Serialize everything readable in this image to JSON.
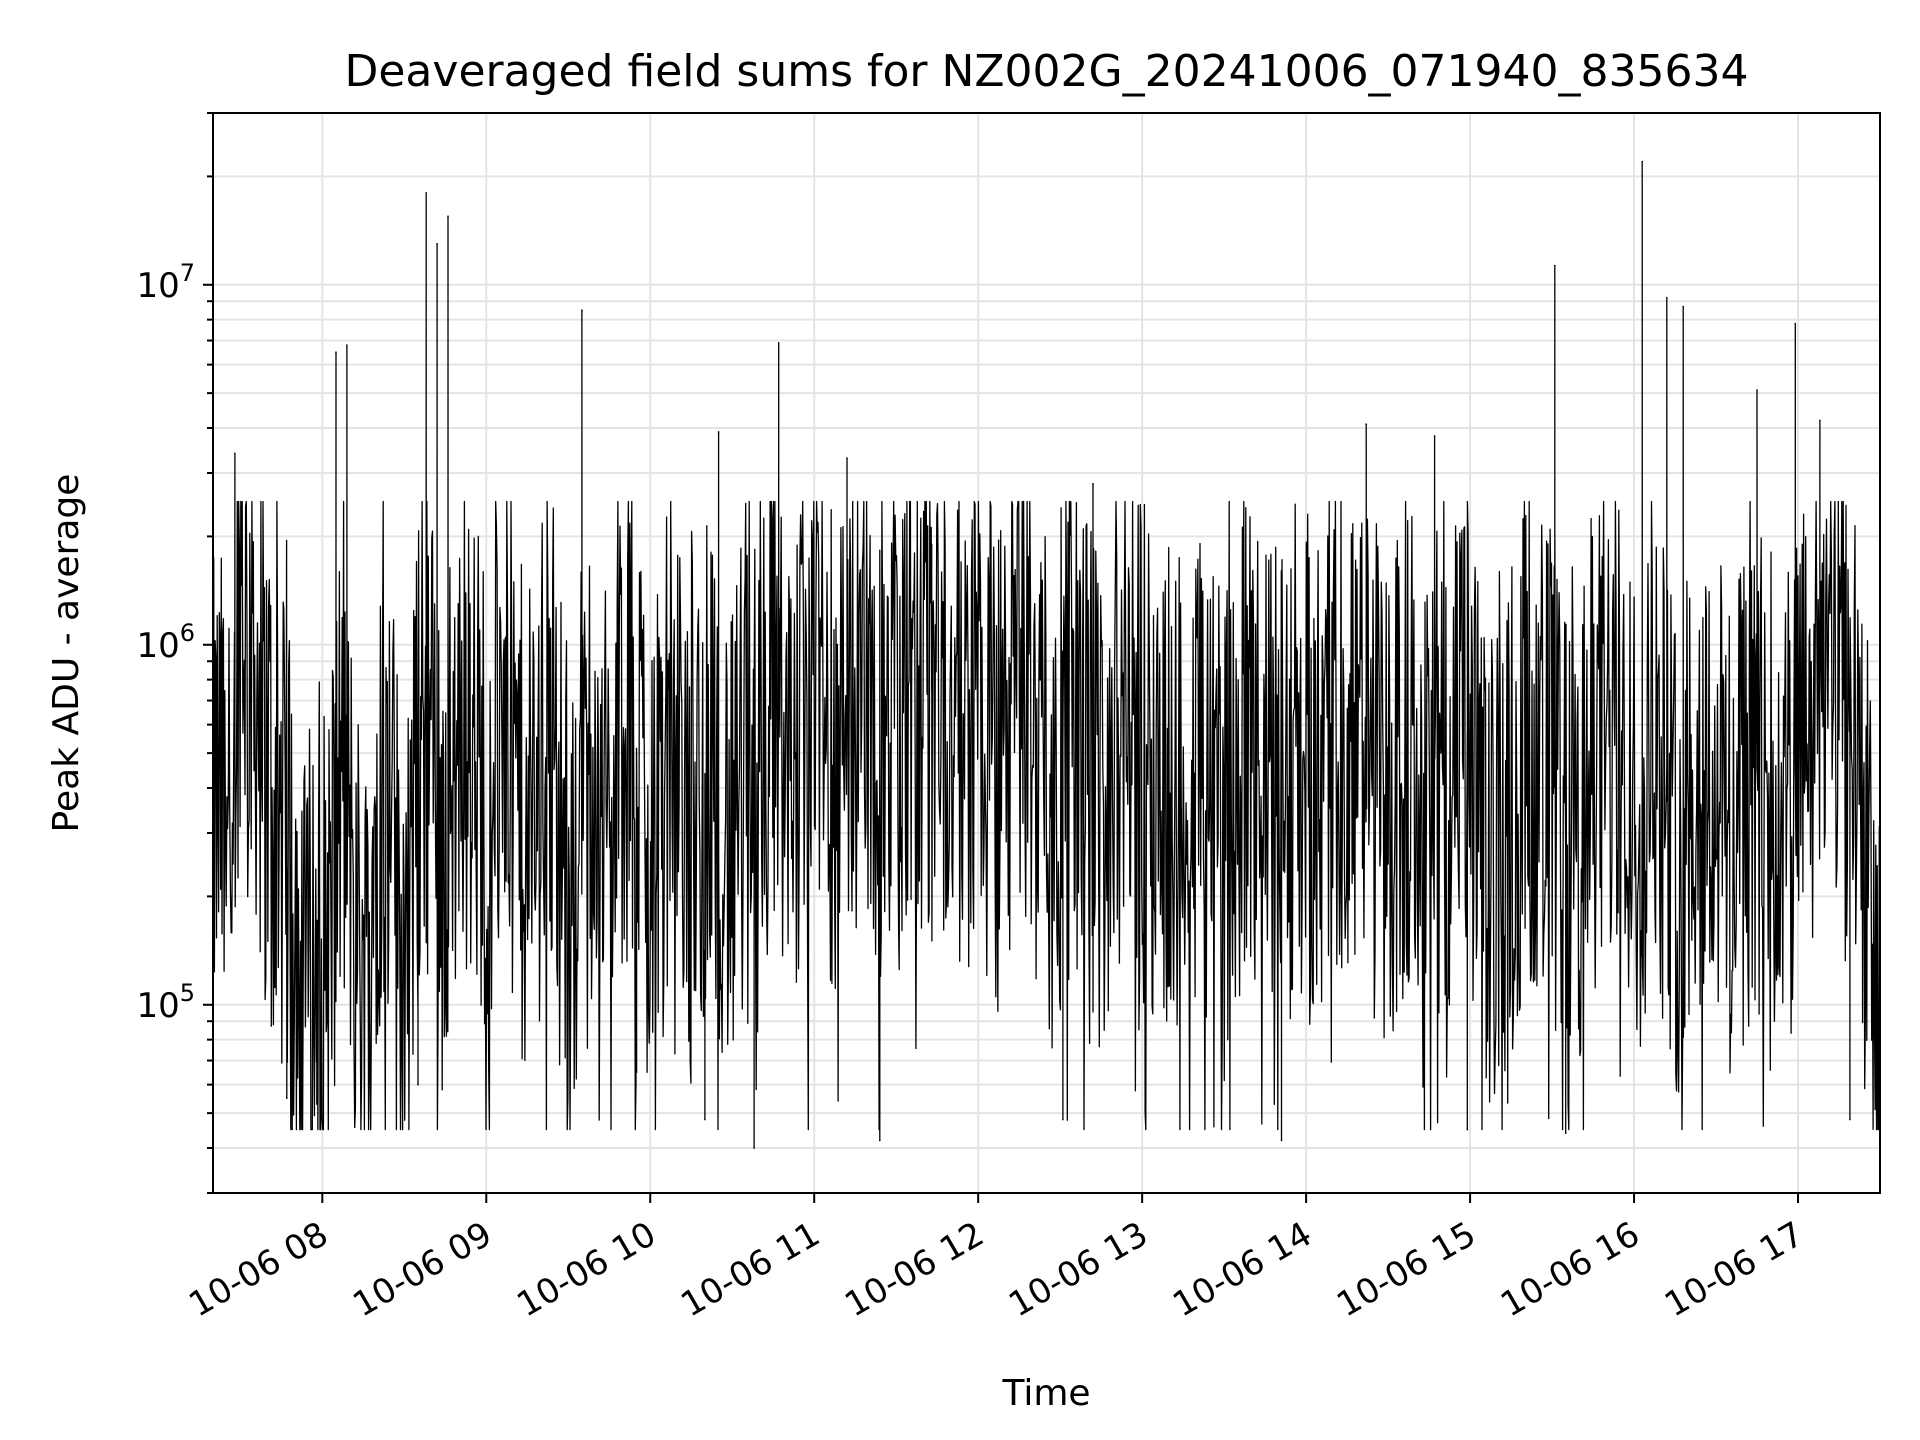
{
  "chart_data": {
    "type": "line",
    "title": "Deaveraged field sums for NZ002G_20241006_071940_835634",
    "xlabel": "Time",
    "ylabel": "Peak ADU - average",
    "yscale": "log",
    "ylim": [
      30000,
      30000000
    ],
    "xlim": [
      "2024-10-06 07:20",
      "2024-10-06 17:30"
    ],
    "grid": true,
    "x_ticks": [
      {
        "value": "2024-10-06 08:00",
        "label": "10-06 08"
      },
      {
        "value": "2024-10-06 09:00",
        "label": "10-06 09"
      },
      {
        "value": "2024-10-06 10:00",
        "label": "10-06 10"
      },
      {
        "value": "2024-10-06 11:00",
        "label": "10-06 11"
      },
      {
        "value": "2024-10-06 12:00",
        "label": "10-06 12"
      },
      {
        "value": "2024-10-06 13:00",
        "label": "10-06 13"
      },
      {
        "value": "2024-10-06 14:00",
        "label": "10-06 14"
      },
      {
        "value": "2024-10-06 15:00",
        "label": "10-06 15"
      },
      {
        "value": "2024-10-06 16:00",
        "label": "10-06 16"
      },
      {
        "value": "2024-10-06 17:00",
        "label": "10-06 17"
      }
    ],
    "y_ticks": [
      {
        "value": 100000,
        "base": "10",
        "exp": "5"
      },
      {
        "value": 1000000,
        "base": "10",
        "exp": "6"
      },
      {
        "value": 10000000,
        "base": "10",
        "exp": "7"
      }
    ],
    "series": [
      {
        "color": "#000000",
        "x": [
          "2024-10-06 07:20",
          "2024-10-06 07:27",
          "2024-10-06 07:30",
          "2024-10-06 07:37",
          "2024-10-06 07:45",
          "2024-10-06 07:52",
          "2024-10-06 08:00",
          "2024-10-06 08:07",
          "2024-10-06 08:15",
          "2024-10-06 08:22",
          "2024-10-06 08:30",
          "2024-10-06 08:37",
          "2024-10-06 08:45",
          "2024-10-06 08:52",
          "2024-10-06 09:00",
          "2024-10-06 09:07",
          "2024-10-06 09:15",
          "2024-10-06 09:22",
          "2024-10-06 09:30",
          "2024-10-06 09:37",
          "2024-10-06 09:45",
          "2024-10-06 09:52",
          "2024-10-06 10:00",
          "2024-10-06 10:07",
          "2024-10-06 10:15",
          "2024-10-06 10:22",
          "2024-10-06 10:30",
          "2024-10-06 10:37",
          "2024-10-06 10:45",
          "2024-10-06 10:52",
          "2024-10-06 11:00",
          "2024-10-06 11:07",
          "2024-10-06 11:15",
          "2024-10-06 11:22",
          "2024-10-06 11:30",
          "2024-10-06 11:37",
          "2024-10-06 11:45",
          "2024-10-06 11:52",
          "2024-10-06 12:00",
          "2024-10-06 12:07",
          "2024-10-06 12:15",
          "2024-10-06 12:22",
          "2024-10-06 12:30",
          "2024-10-06 12:37",
          "2024-10-06 12:45",
          "2024-10-06 12:52",
          "2024-10-06 13:00",
          "2024-10-06 13:07",
          "2024-10-06 13:15",
          "2024-10-06 13:22",
          "2024-10-06 13:30",
          "2024-10-06 13:37",
          "2024-10-06 13:45",
          "2024-10-06 13:52",
          "2024-10-06 14:00",
          "2024-10-06 14:07",
          "2024-10-06 14:15",
          "2024-10-06 14:22",
          "2024-10-06 14:30",
          "2024-10-06 14:37",
          "2024-10-06 14:45",
          "2024-10-06 14:52",
          "2024-10-06 15:00",
          "2024-10-06 15:07",
          "2024-10-06 15:15",
          "2024-10-06 15:22",
          "2024-10-06 15:30",
          "2024-10-06 15:37",
          "2024-10-06 15:45",
          "2024-10-06 15:52",
          "2024-10-06 16:00",
          "2024-10-06 16:07",
          "2024-10-06 16:15",
          "2024-10-06 16:22",
          "2024-10-06 16:30",
          "2024-10-06 16:37",
          "2024-10-06 16:45",
          "2024-10-06 16:52",
          "2024-10-06 17:00",
          "2024-10-06 17:07",
          "2024-10-06 17:15",
          "2024-10-06 17:22",
          "2024-10-06 17:30"
        ],
        "y": [
          350000,
          420000,
          1600000,
          700000,
          300000,
          140000,
          120000,
          450000,
          110000,
          500000,
          130000,
          700000,
          300000,
          650000,
          400000,
          700000,
          260000,
          600000,
          220000,
          500000,
          300000,
          650000,
          350000,
          600000,
          250000,
          550000,
          250000,
          700000,
          800000,
          500000,
          750000,
          550000,
          800000,
          600000,
          500000,
          600000,
          800000,
          500000,
          750000,
          400000,
          850000,
          650000,
          500000,
          600000,
          350000,
          650000,
          500000,
          450000,
          350000,
          500000,
          300000,
          550000,
          400000,
          600000,
          450000,
          650000,
          500000,
          600000,
          300000,
          500000,
          550000,
          400000,
          600000,
          200000,
          350000,
          600000,
          450000,
          200000,
          500000,
          600000,
          350000,
          700000,
          250000,
          500000,
          400000,
          300000,
          450000,
          350000,
          450000,
          700000,
          1000000,
          500000,
          70000
        ]
      }
    ],
    "peaks": {
      "x": [
        "2024-10-06 07:28",
        "2024-10-06 08:05",
        "2024-10-06 08:09",
        "2024-10-06 08:38",
        "2024-10-06 08:42",
        "2024-10-06 08:46",
        "2024-10-06 09:35",
        "2024-10-06 10:25",
        "2024-10-06 10:47",
        "2024-10-06 11:12",
        "2024-10-06 11:43",
        "2024-10-06 12:42",
        "2024-10-06 14:22",
        "2024-10-06 14:47",
        "2024-10-06 15:31",
        "2024-10-06 16:03",
        "2024-10-06 16:12",
        "2024-10-06 16:18",
        "2024-10-06 16:45",
        "2024-10-06 16:59",
        "2024-10-06 17:08"
      ],
      "y": [
        3400000,
        6500000,
        6800000,
        18000000,
        13000000,
        15500000,
        8500000,
        3900000,
        6900000,
        3300000,
        1900000,
        2800000,
        4100000,
        3800000,
        11300000,
        22000000,
        9200000,
        8700000,
        5100000,
        7800000,
        4200000
      ]
    },
    "troughs": {
      "x": [
        "2024-10-06 07:47",
        "2024-10-06 07:58",
        "2024-10-06 08:35",
        "2024-10-06 09:55",
        "2024-10-06 10:20",
        "2024-10-06 10:38",
        "2024-10-06 11:24",
        "2024-10-06 12:31",
        "2024-10-06 13:51",
        "2024-10-06 14:59",
        "2024-10-06 15:35",
        "2024-10-06 17:19"
      ],
      "y": [
        55000,
        53000,
        60000,
        65000,
        48000,
        40000,
        42000,
        48000,
        42000,
        45000,
        44000,
        48000
      ]
    }
  }
}
